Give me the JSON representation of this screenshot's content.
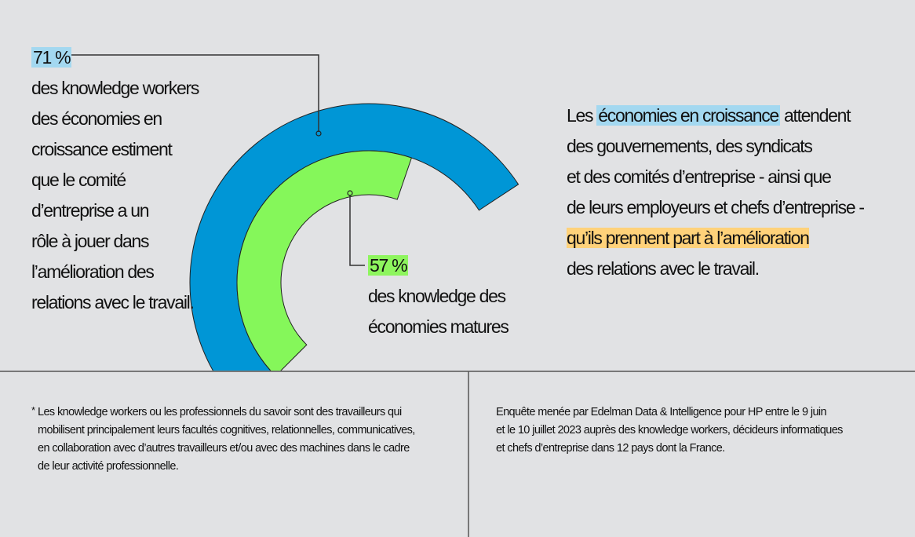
{
  "chart_data": {
    "type": "radial-bar",
    "unit": "%",
    "series": [
      {
        "name": "économies en croissance",
        "value": 71,
        "color": "#0096d6",
        "label": "71 %",
        "description": [
          "des knowledge workers",
          "des économies en",
          "croissance estiment",
          "que le comité",
          "d’entreprise a un",
          "rôle à jouer dans",
          "l’amélioration des",
          "relations avec le travail."
        ]
      },
      {
        "name": "économies matures",
        "value": 57,
        "color": "#85f75a",
        "label": "57 %",
        "description": [
          "des knowledge des",
          "économies matures"
        ]
      }
    ]
  },
  "callout": {
    "lines": [
      {
        "pre": "Les ",
        "highlight": "économies en croissance",
        "post": " attendent"
      },
      {
        "pre": "des gouvernements, des syndicats"
      },
      {
        "pre": "et des comités d’entreprise - ainsi que"
      },
      {
        "pre": "de leurs employeurs et chefs d’entreprise -"
      },
      {
        "highlight": "qu’ils prennent part à l’amélioration"
      },
      {
        "pre": "des relations avec le travail."
      }
    ]
  },
  "footnotes": {
    "asterisk": "*",
    "left": [
      "Les knowledge workers ou les professionnels du savoir sont des travailleurs qui",
      "mobilisent principalement leurs facultés cognitives, relationnelles, communicatives,",
      "en collaboration avec d’autres travailleurs et/ou avec des machines dans le cadre",
      "de leur activité professionnelle."
    ],
    "right": [
      "Enquête menée par Edelman Data & Intelligence pour HP entre le 9 juin",
      "et le 10 juillet 2023 auprès des knowledge workers, décideurs informatiques",
      "et chefs d’entreprise dans 12 pays dont la France."
    ]
  }
}
